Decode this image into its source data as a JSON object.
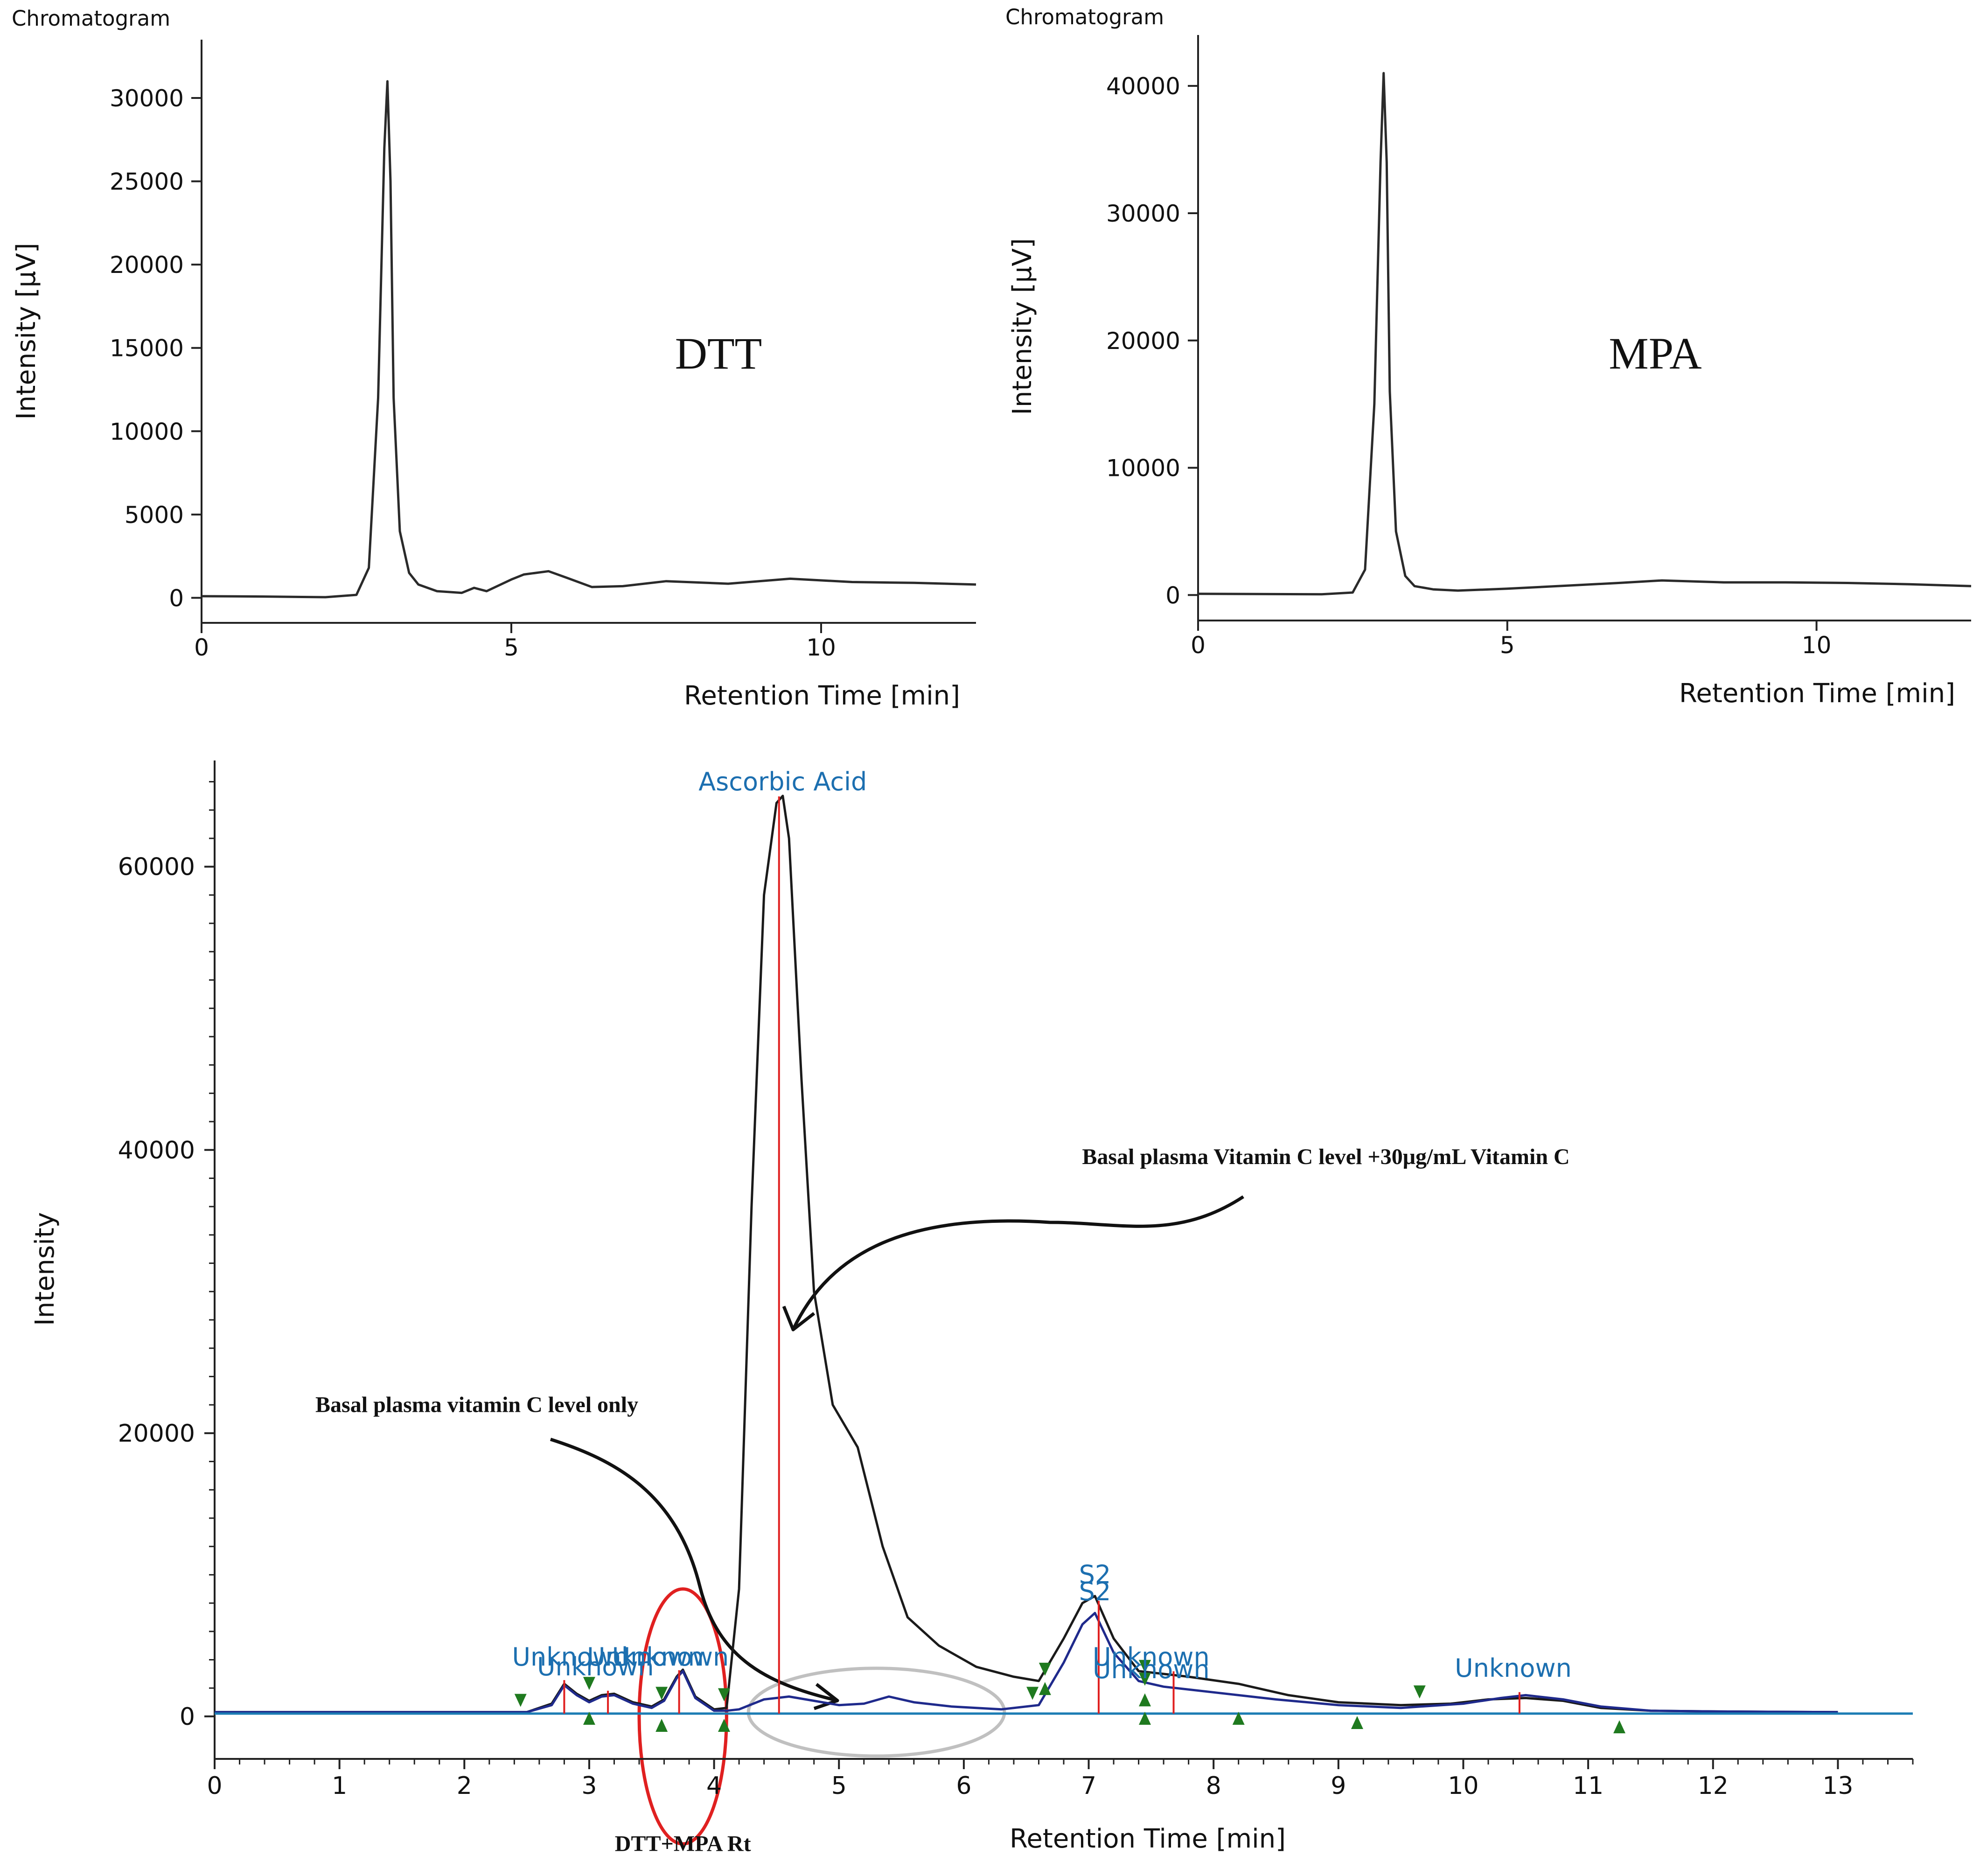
{
  "chart_data": [
    {
      "type": "line",
      "header": "Chromatogram",
      "annotation": "DTT",
      "xlabel": "Retention Time [min]",
      "ylabel": "Intensity [μV]",
      "xlim": [
        0,
        12.5
      ],
      "ylim": [
        -1500,
        33500
      ],
      "xticks": [
        0,
        5,
        10
      ],
      "xtick_labels": [
        "0",
        "5",
        "10"
      ],
      "yticks": [
        0,
        5000,
        10000,
        15000,
        20000,
        25000,
        30000
      ],
      "ytick_labels": [
        "0",
        "5000",
        "10000",
        "15000",
        "20000",
        "25000",
        "30000"
      ],
      "series": [
        {
          "name": "DTT",
          "x": [
            0,
            1,
            2,
            2.5,
            2.7,
            2.85,
            2.95,
            3.0,
            3.05,
            3.1,
            3.2,
            3.35,
            3.5,
            3.8,
            4.2,
            4.4,
            4.6,
            5.0,
            5.2,
            5.6,
            5.9,
            6.3,
            6.8,
            7.5,
            8.5,
            9.5,
            10.5,
            11.5,
            12.5
          ],
          "y": [
            100,
            80,
            40,
            180,
            1800,
            12000,
            27000,
            31000,
            25000,
            12000,
            4000,
            1500,
            800,
            400,
            300,
            600,
            400,
            1100,
            1400,
            1600,
            1200,
            650,
            700,
            1000,
            850,
            1150,
            950,
            900,
            800
          ]
        }
      ]
    },
    {
      "type": "line",
      "header": "Chromatogram",
      "annotation": "MPA",
      "xlabel": "Retention Time [min]",
      "ylabel": "Intensity [μV]",
      "xlim": [
        0,
        12.5
      ],
      "ylim": [
        -2000,
        44000
      ],
      "xticks": [
        0,
        5,
        10
      ],
      "xtick_labels": [
        "0",
        "5",
        "10"
      ],
      "yticks": [
        0,
        10000,
        20000,
        30000,
        40000
      ],
      "ytick_labels": [
        "0",
        "10000",
        "20000",
        "30000",
        "40000"
      ],
      "series": [
        {
          "name": "MPA",
          "x": [
            0,
            1,
            2,
            2.5,
            2.7,
            2.85,
            2.95,
            3.0,
            3.05,
            3.1,
            3.2,
            3.35,
            3.5,
            3.8,
            4.2,
            5,
            6,
            6.8,
            7.5,
            8.5,
            9.5,
            10.5,
            11.5,
            12.5
          ],
          "y": [
            100,
            80,
            60,
            200,
            2000,
            15000,
            34000,
            41000,
            34000,
            16000,
            5000,
            1500,
            700,
            450,
            350,
            500,
            750,
            950,
            1150,
            1000,
            1000,
            950,
            850,
            700
          ]
        }
      ]
    },
    {
      "type": "line",
      "header": "",
      "xlabel": "Retention Time [min]",
      "ylabel": "Intensity",
      "xlim": [
        0,
        13.6
      ],
      "ylim": [
        -3000,
        67500
      ],
      "xticks": [
        0,
        1,
        2,
        3,
        4,
        5,
        6,
        7,
        8,
        9,
        10,
        11,
        12,
        13
      ],
      "xtick_labels": [
        "0",
        "1",
        "2",
        "3",
        "4",
        "5",
        "6",
        "7",
        "8",
        "9",
        "10",
        "11",
        "12",
        "13"
      ],
      "yticks": [
        0,
        20000,
        40000,
        60000
      ],
      "ytick_labels": [
        "0",
        "20000",
        "40000",
        "60000"
      ],
      "series": [
        {
          "name": "Basal plasma Vitamin C level +30μg/mL Vitamin C",
          "color": "#1a1a1a",
          "x": [
            0,
            2.5,
            2.7,
            2.8,
            2.9,
            3.0,
            3.1,
            3.2,
            3.35,
            3.5,
            3.6,
            3.7,
            3.75,
            3.85,
            4.0,
            4.1,
            4.2,
            4.3,
            4.4,
            4.5,
            4.55,
            4.6,
            4.7,
            4.8,
            4.95,
            5.15,
            5.35,
            5.55,
            5.8,
            6.1,
            6.4,
            6.6,
            6.8,
            6.95,
            7.05,
            7.2,
            7.4,
            7.6,
            7.8,
            8.2,
            8.6,
            9.0,
            9.5,
            9.9,
            10.2,
            10.5,
            10.8,
            11.1,
            11.5,
            12.0,
            13.0
          ],
          "y": [
            300,
            300,
            900,
            2300,
            1600,
            1100,
            1500,
            1600,
            1000,
            700,
            1200,
            2800,
            3300,
            1400,
            500,
            600,
            9000,
            36000,
            58000,
            64500,
            65000,
            62000,
            45000,
            30000,
            22000,
            19000,
            12000,
            7000,
            5000,
            3500,
            2800,
            2500,
            5500,
            8000,
            8500,
            5500,
            3200,
            3000,
            2800,
            2300,
            1500,
            1000,
            800,
            900,
            1200,
            1300,
            1100,
            600,
            400,
            350,
            300
          ]
        },
        {
          "name": "Basal plasma vitamin C level only",
          "color": "#1f2a8c",
          "x": [
            0,
            2.5,
            2.7,
            2.8,
            2.9,
            3.0,
            3.1,
            3.2,
            3.35,
            3.5,
            3.6,
            3.7,
            3.75,
            3.85,
            4.0,
            4.1,
            4.2,
            4.4,
            4.6,
            4.8,
            5.0,
            5.2,
            5.4,
            5.6,
            5.9,
            6.3,
            6.6,
            6.8,
            6.95,
            7.05,
            7.2,
            7.4,
            7.6,
            8.0,
            8.5,
            9.0,
            9.5,
            10.0,
            10.3,
            10.5,
            10.8,
            11.1,
            11.5,
            12.0,
            13.0
          ],
          "y": [
            300,
            300,
            800,
            2200,
            1500,
            1000,
            1400,
            1500,
            900,
            600,
            1100,
            2700,
            3200,
            1300,
            400,
            400,
            500,
            1200,
            1400,
            1100,
            800,
            900,
            1400,
            1000,
            700,
            500,
            800,
            3800,
            6500,
            7300,
            4500,
            2500,
            2100,
            1700,
            1200,
            800,
            600,
            900,
            1300,
            1500,
            1200,
            700,
            400,
            350,
            300
          ]
        },
        {
          "name": "Baseline",
          "color": "#1c7cb4",
          "x": [
            0,
            13.6
          ],
          "y": [
            200,
            200
          ]
        }
      ],
      "peak_labels": [
        {
          "text": "Ascorbic Acid",
          "x": 4.55,
          "y": 65000
        },
        {
          "text": "Unknown",
          "x": 2.85,
          "y": 3200
        },
        {
          "text": "Unknown",
          "x": 3.05,
          "y": 2500
        },
        {
          "text": "Unknown",
          "x": 3.45,
          "y": 3200
        },
        {
          "text": "Unknown",
          "x": 3.65,
          "y": 3200
        },
        {
          "text": "S2",
          "x": 7.05,
          "y": 9000
        },
        {
          "text": "S2",
          "x": 7.05,
          "y": 7800
        },
        {
          "text": "Unknown",
          "x": 7.5,
          "y": 3200
        },
        {
          "text": "Unknown",
          "x": 7.5,
          "y": 2300
        },
        {
          "text": "Unknown",
          "x": 10.4,
          "y": 2400
        }
      ],
      "peak_markers_x": [
        2.8,
        3.15,
        3.72,
        4.52,
        7.08,
        7.68,
        10.45
      ],
      "boundary_markers": [
        {
          "x": 2.45,
          "y": 800,
          "dir": "down"
        },
        {
          "x": 3.0,
          "y": 2000,
          "dir": "down"
        },
        {
          "x": 3.58,
          "y": 1300,
          "dir": "down"
        },
        {
          "x": 4.08,
          "y": 1200,
          "dir": "down"
        },
        {
          "x": 6.55,
          "y": 1300,
          "dir": "down"
        },
        {
          "x": 6.65,
          "y": 3000,
          "dir": "down"
        },
        {
          "x": 7.45,
          "y": 3200,
          "dir": "down"
        },
        {
          "x": 7.45,
          "y": 2300,
          "dir": "down"
        },
        {
          "x": 9.65,
          "y": 1400,
          "dir": "down"
        },
        {
          "x": 3.0,
          "y": 200,
          "dir": "up"
        },
        {
          "x": 3.58,
          "y": -300,
          "dir": "up"
        },
        {
          "x": 4.08,
          "y": -300,
          "dir": "up"
        },
        {
          "x": 6.65,
          "y": 2300,
          "dir": "up"
        },
        {
          "x": 7.45,
          "y": 200,
          "dir": "up"
        },
        {
          "x": 7.45,
          "y": 1500,
          "dir": "up"
        },
        {
          "x": 8.2,
          "y": 200,
          "dir": "up"
        },
        {
          "x": 9.15,
          "y": -100,
          "dir": "up"
        },
        {
          "x": 11.25,
          "y": -400,
          "dir": "up"
        }
      ],
      "annotations": [
        {
          "text": "Basal plasma Vitamin C level +30μg/mL Vitamin C",
          "x": 8.9,
          "y": 39000
        },
        {
          "text": "Basal plasma vitamin C level only",
          "x": 2.1,
          "y": 21500
        },
        {
          "text": "DTT+MPA Rt",
          "x": 3.75,
          "y": -9500
        }
      ],
      "highlights": [
        {
          "name": "DTT+MPA retention window",
          "color": "#e02020",
          "center_x": 3.75,
          "center_y": 0,
          "x_range": [
            3.4,
            4.1
          ],
          "y_range": [
            -9000,
            9000
          ]
        },
        {
          "name": "basal vitamin C region",
          "color": "#c0c0c0",
          "center_x": 5.3,
          "center_y": 300,
          "x_range": [
            4.25,
            6.3
          ],
          "y_range": [
            -2800,
            3400
          ]
        }
      ]
    }
  ]
}
